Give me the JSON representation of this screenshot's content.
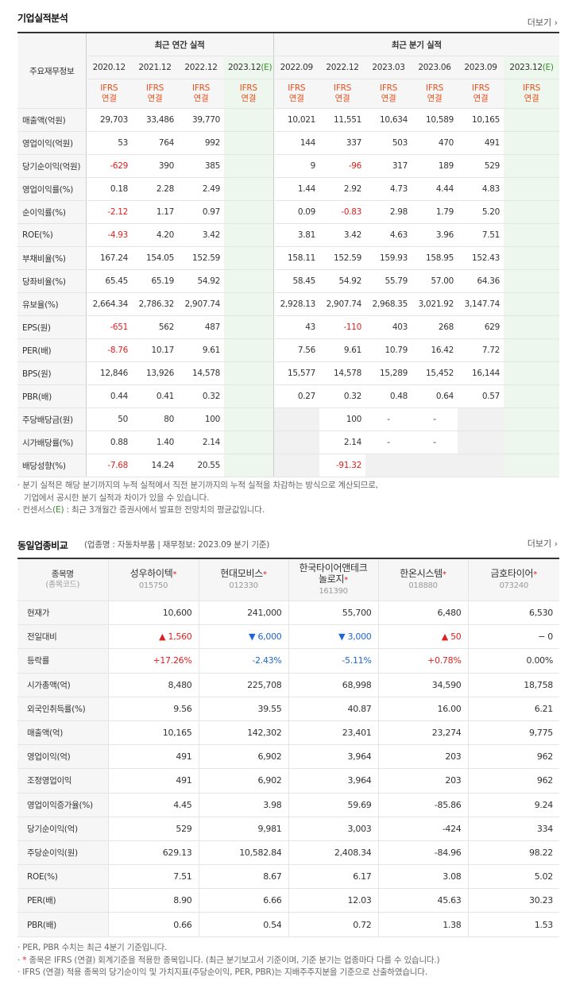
{
  "section1": {
    "title": "기업실적분석",
    "more": "더보기",
    "row_header": "주요재무정보",
    "group_annual": "최근 연간 실적",
    "group_quarter": "최근 분기 실적",
    "periods": [
      "2020.12",
      "2021.12",
      "2022.12",
      "2023.12(E)",
      "2022.09",
      "2022.12",
      "2023.03",
      "2023.06",
      "2023.09",
      "2023.12(E)"
    ],
    "ifrs": "IFRS",
    "consol": "연결",
    "rows": [
      {
        "label": "매출액(억원)",
        "values": [
          "29,703",
          "33,486",
          "39,770",
          "",
          "10,021",
          "11,551",
          "10,634",
          "10,589",
          "10,165",
          ""
        ]
      },
      {
        "label": "영업이익(억원)",
        "values": [
          "53",
          "764",
          "992",
          "",
          "144",
          "337",
          "503",
          "470",
          "491",
          ""
        ]
      },
      {
        "label": "당기순이익(억원)",
        "values": [
          "-629",
          "390",
          "385",
          "",
          "9",
          "-96",
          "317",
          "189",
          "529",
          ""
        ]
      },
      {
        "label": "영업이익률(%)",
        "values": [
          "0.18",
          "2.28",
          "2.49",
          "",
          "1.44",
          "2.92",
          "4.73",
          "4.44",
          "4.83",
          ""
        ]
      },
      {
        "label": "순이익률(%)",
        "values": [
          "-2.12",
          "1.17",
          "0.97",
          "",
          "0.09",
          "-0.83",
          "2.98",
          "1.79",
          "5.20",
          ""
        ]
      },
      {
        "label": "ROE(%)",
        "values": [
          "-4.93",
          "4.20",
          "3.42",
          "",
          "3.81",
          "3.42",
          "4.63",
          "3.96",
          "7.51",
          ""
        ]
      },
      {
        "label": "부채비율(%)",
        "values": [
          "167.24",
          "154.05",
          "152.59",
          "",
          "158.11",
          "152.59",
          "159.93",
          "158.95",
          "152.43",
          ""
        ]
      },
      {
        "label": "당좌비율(%)",
        "values": [
          "65.45",
          "65.19",
          "54.92",
          "",
          "58.45",
          "54.92",
          "55.79",
          "57.00",
          "64.36",
          ""
        ]
      },
      {
        "label": "유보율(%)",
        "values": [
          "2,664.34",
          "2,786.32",
          "2,907.74",
          "",
          "2,928.13",
          "2,907.74",
          "2,968.35",
          "3,021.92",
          "3,147.74",
          ""
        ]
      },
      {
        "label": "EPS(원)",
        "values": [
          "-651",
          "562",
          "487",
          "",
          "43",
          "-110",
          "403",
          "268",
          "629",
          ""
        ]
      },
      {
        "label": "PER(배)",
        "values": [
          "-8.76",
          "10.17",
          "9.61",
          "",
          "7.56",
          "9.61",
          "10.79",
          "16.42",
          "7.72",
          ""
        ]
      },
      {
        "label": "BPS(원)",
        "values": [
          "12,846",
          "13,926",
          "14,578",
          "",
          "15,577",
          "14,578",
          "15,289",
          "15,452",
          "16,144",
          ""
        ]
      },
      {
        "label": "PBR(배)",
        "values": [
          "0.44",
          "0.41",
          "0.32",
          "",
          "0.27",
          "0.32",
          "0.48",
          "0.64",
          "0.57",
          ""
        ]
      },
      {
        "label": "주당배당금(원)",
        "values": [
          "50",
          "80",
          "100",
          "",
          "",
          "100",
          "-",
          "-",
          "",
          ""
        ]
      },
      {
        "label": "시가배당률(%)",
        "values": [
          "0.88",
          "1.40",
          "2.14",
          "",
          "",
          "2.14",
          "-",
          "-",
          "",
          ""
        ]
      },
      {
        "label": "배당성향(%)",
        "values": [
          "-7.68",
          "14.24",
          "20.55",
          "",
          "",
          "-91.32",
          "",
          "",
          "",
          ""
        ]
      }
    ],
    "notes": [
      "분기 실적은 해당 분기까지의 누적 실적에서 직전 분기까지의 누적 실적을 차감하는 방식으로 계산되므로,",
      "기업에서 공시한 분기 실적과 차이가 있을 수 있습니다.",
      "컨센서스",
      "(E)",
      ": 최근 3개월간 증권사에서 발표한 전망치의 평균값입니다."
    ]
  },
  "section2": {
    "title": "동일업종비교",
    "subtitle": "(업종명 : 자동차부품 | 재무정보: 2023.09 분기 기준)",
    "more": "더보기",
    "head_label": "종목명",
    "head_code": "(종목코드)",
    "companies": [
      {
        "name": "성우하이텍",
        "code": "015750"
      },
      {
        "name": "현대모비스",
        "code": "012330"
      },
      {
        "name": "한국타이어앤테크놀로지",
        "code": "161390"
      },
      {
        "name": "한온시스템",
        "code": "018880"
      },
      {
        "name": "금호타이어",
        "code": "073240"
      }
    ],
    "rows": [
      {
        "label": "현재가",
        "values": [
          "10,600",
          "241,000",
          "55,700",
          "6,480",
          "6,530"
        ]
      },
      {
        "label": "전일대비",
        "values": [
          "▲ 1,560",
          "▼ 6,000",
          "▼ 3,000",
          "▲ 50",
          "− 0"
        ],
        "dirs": [
          "up",
          "dn",
          "dn",
          "up",
          ""
        ]
      },
      {
        "label": "등락률",
        "values": [
          "+17.26%",
          "-2.43%",
          "-5.11%",
          "+0.78%",
          "0.00%"
        ],
        "dirs": [
          "up",
          "dn",
          "dn",
          "up",
          ""
        ]
      },
      {
        "label": "시가총액(억)",
        "values": [
          "8,480",
          "225,708",
          "68,998",
          "34,590",
          "18,758"
        ]
      },
      {
        "label": "외국인취득률(%)",
        "values": [
          "9.56",
          "39.55",
          "40.87",
          "16.00",
          "6.21"
        ]
      },
      {
        "label": "매출액(억)",
        "values": [
          "10,165",
          "142,302",
          "23,401",
          "23,274",
          "9,775"
        ]
      },
      {
        "label": "영업이익(억)",
        "values": [
          "491",
          "6,902",
          "3,964",
          "203",
          "962"
        ]
      },
      {
        "label": "조정영업이익",
        "values": [
          "491",
          "6,902",
          "3,964",
          "203",
          "962"
        ]
      },
      {
        "label": "영업이익증가율(%)",
        "values": [
          "4.45",
          "3.98",
          "59.69",
          "-85.86",
          "9.24"
        ]
      },
      {
        "label": "당기순이익(억)",
        "values": [
          "529",
          "9,981",
          "3,003",
          "-424",
          "334"
        ]
      },
      {
        "label": "주당순이익(원)",
        "values": [
          "629.13",
          "10,582.84",
          "2,408.34",
          "-84.96",
          "98.22"
        ]
      },
      {
        "label": "ROE(%)",
        "values": [
          "7.51",
          "8.67",
          "6.17",
          "3.08",
          "5.02"
        ]
      },
      {
        "label": "PER(배)",
        "values": [
          "8.90",
          "6.66",
          "12.03",
          "45.63",
          "30.23"
        ]
      },
      {
        "label": "PBR(배)",
        "values": [
          "0.66",
          "0.54",
          "0.72",
          "1.38",
          "1.53"
        ]
      }
    ],
    "notes": [
      "PER, PBR 수치는 최근 4분기 기준입니다.",
      "*",
      " 종목은 IFRS (연결) 회계기준을 적용한 종목입니다. (최근 분기보고서 기준이며, 기준 분기는 업종마다 다를 수 있습니다.)",
      "IFRS (연결) 적용 종목의 당기순이익 및 가치지표(주당순이익, PER, PBR)는 지배주주지분을 기준으로 산출하였습니다."
    ]
  }
}
